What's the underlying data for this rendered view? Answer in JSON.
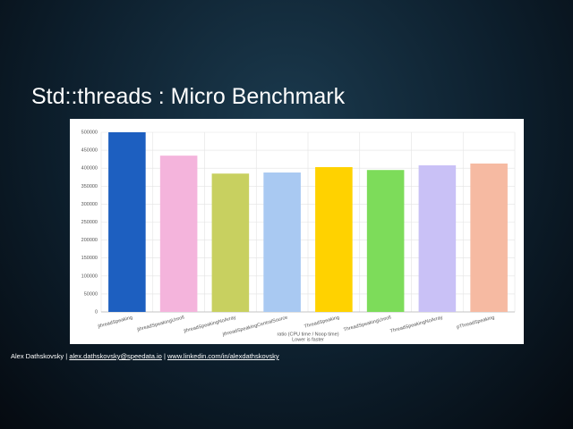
{
  "slide_title": "Std::threads : Micro Benchmark",
  "chart_data": {
    "type": "bar",
    "categories": [
      "jthreadSpeaking",
      "jthreadSpeakingUnroll",
      "jthreadSpeakingNoArray",
      "jthreadSpeakingCentralSource",
      "ThreadSpeaking",
      "ThreadSpeakingUnroll",
      "ThreadSpeakingNoArray",
      "pThreadSpeaking"
    ],
    "values": [
      500000,
      435000,
      385000,
      388000,
      403000,
      395000,
      408000,
      413000
    ],
    "colors": [
      "#1d5fc0",
      "#f4b4dc",
      "#c8d060",
      "#a9c9f2",
      "#ffd200",
      "#7ddc5a",
      "#c9c1f6",
      "#f6baa2"
    ],
    "x_label": "ratio (CPU time / Noop time)",
    "x_label_note": "Lower is faster",
    "ylim": [
      0,
      500000
    ],
    "yticks": [
      0,
      50000,
      100000,
      150000,
      200000,
      250000,
      300000,
      350000,
      400000,
      450000,
      500000
    ],
    "grid": true
  },
  "footer": {
    "author": "Alex Dathskovsky",
    "separator": "|",
    "email": "alex.dathskovsky@speedata.io",
    "linkedin": "www.linkedin.com/in/alexdathskovsky"
  }
}
